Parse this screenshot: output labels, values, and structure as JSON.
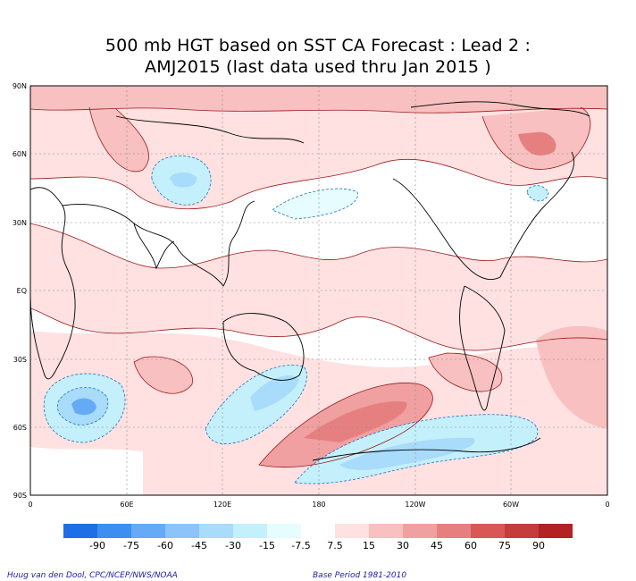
{
  "title": {
    "line1": "500 mb HGT based on SST CA Forecast : Lead 2 :",
    "line2": "AMJ2015 (last data used thru Jan 2015 )"
  },
  "axes": {
    "lat_labels": [
      "90N",
      "60N",
      "30N",
      "EQ",
      "30S",
      "60S",
      "90S"
    ],
    "lon_labels": [
      "0",
      "60E",
      "120E",
      "180",
      "120W",
      "60W",
      "0"
    ]
  },
  "legend": {
    "labels": [
      "-90",
      "-75",
      "-60",
      "-45",
      "-30",
      "-15",
      "-7.5",
      "7.5",
      "15",
      "30",
      "45",
      "60",
      "75",
      "90"
    ],
    "colors": [
      "#1e6fe6",
      "#3c8ff0",
      "#64aaf5",
      "#8cc3f8",
      "#a9dbfa",
      "#c4f0fc",
      "#e6fcfe",
      "#ffffff",
      "#ffe1e1",
      "#f8c0c0",
      "#f0a0a0",
      "#e68080",
      "#d85858",
      "#c43c3c",
      "#b22222"
    ]
  },
  "credits": {
    "left": "Huug van den Dool, CPC/NCEP/NWS/NOAA",
    "right": "Base Period 1981-2010"
  }
}
